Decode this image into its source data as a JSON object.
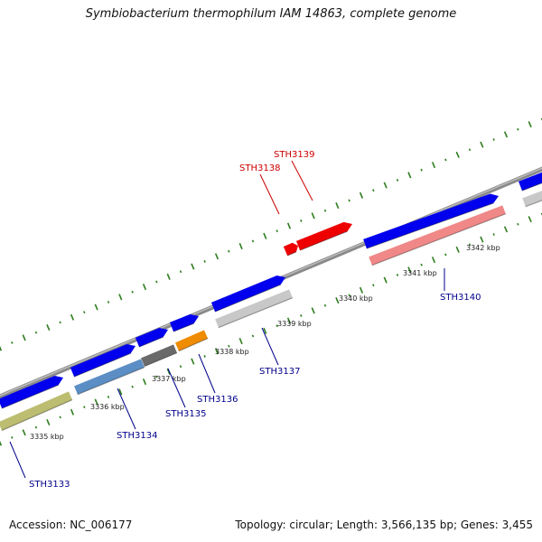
{
  "title": "Symbiobacterium thermophilum IAM 14863, complete genome",
  "footer": {
    "accession": "Accession: NC_006177",
    "topology": "Topology: circular; Length: 3,566,135 bp; Genes: 3,455"
  },
  "colors": {
    "forward_gene": "#0000ee",
    "highlight_gene": "#ee0000",
    "highlight_label": "#cc0000",
    "gene_label": "#00008b",
    "tick": "#2e7d1e",
    "backbone": "#8a8a8a"
  },
  "ticks": [
    {
      "label": "3335 kbp"
    },
    {
      "label": "3336 kbp"
    },
    {
      "label": "3337 kbp"
    },
    {
      "label": "3338 kbp"
    },
    {
      "label": "3339 kbp"
    },
    {
      "label": "3340 kbp"
    },
    {
      "label": "3341 kbp"
    },
    {
      "label": "3342 kbp"
    }
  ],
  "gene_labels": [
    {
      "name": "STH3133",
      "highlight": false
    },
    {
      "name": "STH3134",
      "highlight": false
    },
    {
      "name": "STH3135",
      "highlight": false
    },
    {
      "name": "STH3136",
      "highlight": false
    },
    {
      "name": "STH3137",
      "highlight": false
    },
    {
      "name": "STH3138",
      "highlight": true
    },
    {
      "name": "STH3139",
      "highlight": true
    },
    {
      "name": "STH3140",
      "highlight": false
    }
  ]
}
